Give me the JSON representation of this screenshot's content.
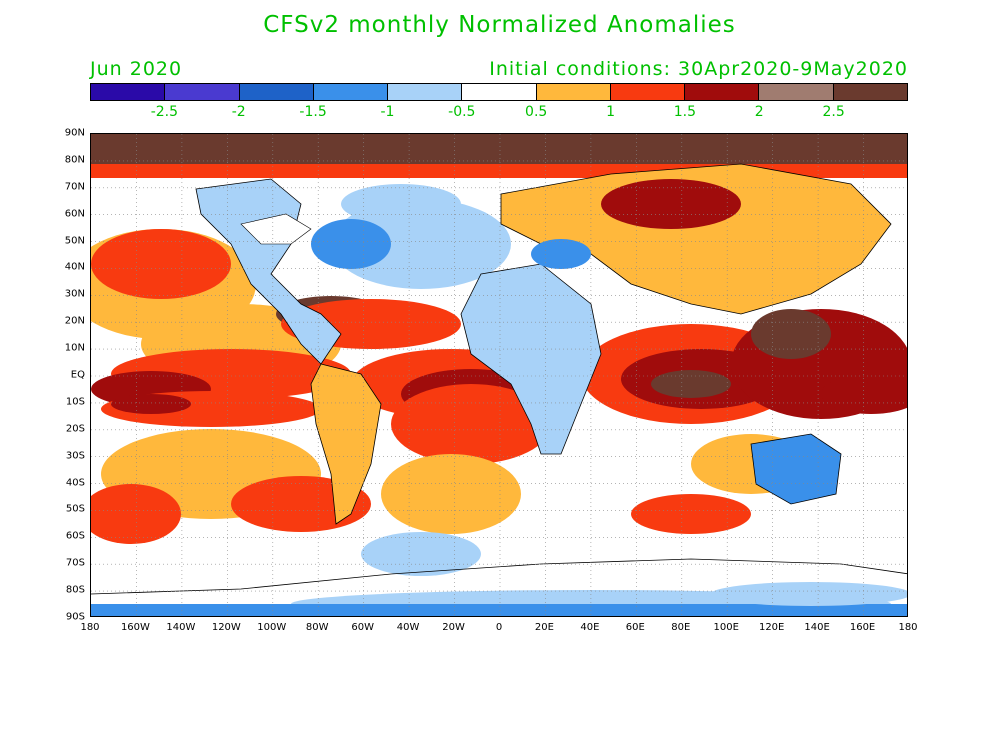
{
  "title": "CFSv2 monthly Normalized Anomalies",
  "month_label": "Jun 2020",
  "initial_conditions": "Initial conditions: 30Apr2020-9May2020",
  "colors": {
    "title": "#00c000"
  },
  "colorbar": {
    "colors": [
      "#2a0aa8",
      "#4a3ad0",
      "#1e62c8",
      "#3a90ea",
      "#a8d2f8",
      "#ffffff",
      "#ffb83c",
      "#f83a10",
      "#a00c0c",
      "#a07c70",
      "#6a3a2e"
    ],
    "labels": [
      "-2.5",
      "-2",
      "-1.5",
      "-1",
      "-0.5",
      "0.5",
      "1",
      "1.5",
      "2",
      "2.5"
    ]
  },
  "lat_labels": [
    "90N",
    "80N",
    "70N",
    "60N",
    "50N",
    "40N",
    "30N",
    "20N",
    "10N",
    "EQ",
    "10S",
    "20S",
    "30S",
    "40S",
    "50S",
    "60S",
    "70S",
    "80S",
    "90S"
  ],
  "lon_labels": [
    "180",
    "160W",
    "140W",
    "120W",
    "100W",
    "80W",
    "60W",
    "40W",
    "20W",
    "0",
    "20E",
    "40E",
    "60E",
    "80E",
    "100E",
    "120E",
    "140E",
    "160E",
    "180"
  ]
}
